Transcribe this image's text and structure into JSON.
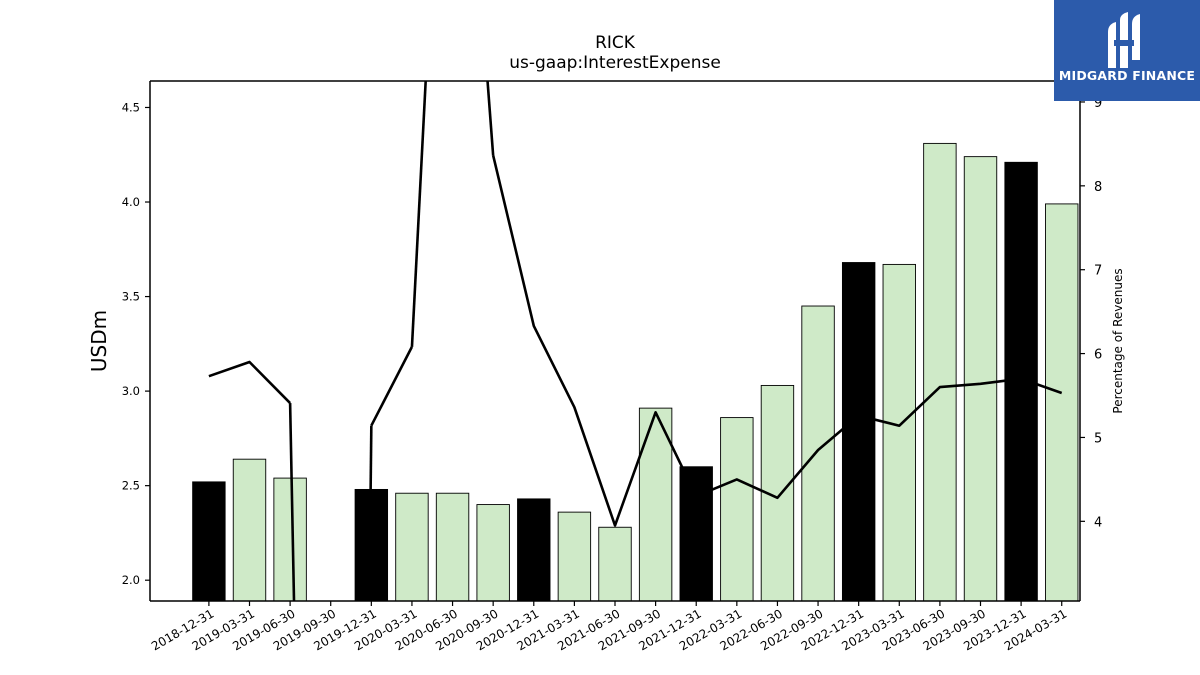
{
  "header": {
    "title": "RICK",
    "subtitle": "us-gaap:InterestExpense"
  },
  "logo": {
    "text": "MIDGARD FINANCE",
    "bg_color": "#2c5bab"
  },
  "chart_data": {
    "type": "bar",
    "categories": [
      "2018-12-31",
      "2019-03-31",
      "2019-06-30",
      "2019-09-30",
      "2019-12-31",
      "2020-03-31",
      "2020-06-30",
      "2020-09-30",
      "2020-12-31",
      "2021-03-31",
      "2021-06-30",
      "2021-09-30",
      "2021-12-31",
      "2022-03-31",
      "2022-06-30",
      "2022-09-30",
      "2022-12-31",
      "2023-03-31",
      "2023-06-30",
      "2023-09-30",
      "2023-12-31",
      "2024-03-31"
    ],
    "series": [
      {
        "axis": "left",
        "kind": "bar",
        "values": [
          2.52,
          2.64,
          2.54,
          null,
          2.48,
          2.46,
          2.46,
          2.4,
          2.43,
          2.36,
          2.28,
          2.91,
          2.6,
          2.86,
          3.03,
          3.45,
          3.68,
          3.67,
          4.31,
          4.24,
          4.21,
          3.99
        ],
        "colors": {
          "Q4": "#000000",
          "other": "#cfeac8"
        }
      },
      {
        "axis": "right",
        "kind": "line",
        "values": [
          5.73,
          5.9,
          5.41,
          null,
          5.14,
          6.08,
          null,
          8.36,
          6.33,
          5.36,
          3.95,
          5.3,
          4.3,
          4.5,
          4.28,
          4.85,
          5.26,
          5.14,
          5.6,
          5.64,
          5.7,
          5.53
        ],
        "color": "#000000"
      }
    ],
    "ylabel": "USDm",
    "y2label": "Percentage of Revenues",
    "ylim": [
      1.89,
      4.64
    ],
    "y2lim": [
      3.05,
      9.25
    ],
    "yticks": [
      "2.0",
      "2.5",
      "3.0",
      "3.5",
      "4.0",
      "4.5"
    ],
    "y2ticks": [
      "4",
      "5",
      "6",
      "7",
      "8",
      "9"
    ],
    "grid": false,
    "legend": "none"
  }
}
